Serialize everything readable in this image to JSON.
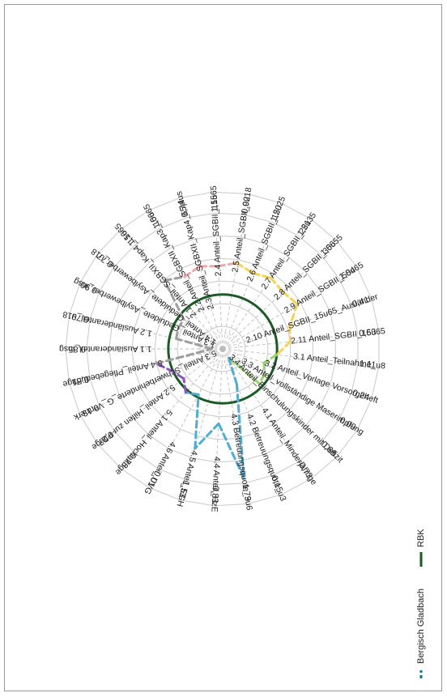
{
  "chart_data": {
    "type": "radar",
    "categories": [
      {
        "label": "1.1 Ausländeranteil_insg",
        "value": "0,85",
        "norm": 0.08,
        "color": "#9e9e9e"
      },
      {
        "label": "1.2 Ausländeranteil_u18",
        "value": "0,79",
        "norm": 0.35,
        "color": "#9e9e9e"
      },
      {
        "label": "1.3 Anteil_Geduldete_Asylbewerber_insg",
        "value": "-0,90",
        "norm": 0.36,
        "color": "#9e9e9e"
      },
      {
        "label": "1.4 Anteil_Geduldete_Asylbewerber_u18",
        "value": "-0,77",
        "norm": 0.36,
        "color": "#9e9e9e"
      },
      {
        "label": "2.1 Anteil_SGBXII_Kap4_15u65",
        "value": "1,16",
        "norm": 0.66,
        "color": "#9e9e9e"
      },
      {
        "label": "2.2 Anteil_SGBXII_Kap3_15u65",
        "value": "1,06",
        "norm": 0.6,
        "color": "#f4a6a6"
      },
      {
        "label": "2.3 Anteil_SGBXII_Kap4_65plus",
        "value": "0,74",
        "norm": 0.63,
        "color": "#f4a6a6"
      },
      {
        "label": "2.4 Anteil_SGBII_15u65",
        "value": "1,15",
        "norm": 0.61,
        "color": "#f4a6a6"
      },
      {
        "label": "2.5 Anteil_SGBII_0u18",
        "value": "0,92",
        "norm": 0.64,
        "color": "#f8d352"
      },
      {
        "label": "2.6 Anteil_SGBII_15u25",
        "value": "1,20",
        "norm": 0.6,
        "color": "#f8d352"
      },
      {
        "label": "2.7 Anteil_SGBII_25u35",
        "value": "1,21",
        "norm": 0.63,
        "color": "#f8d352"
      },
      {
        "label": "2.8 Anteil_SGBII_35u55",
        "value": "1,06",
        "norm": 0.61,
        "color": "#f8d352"
      },
      {
        "label": "2.9 Anteil_SGBII_55u65",
        "value": "1,04",
        "norm": 0.64,
        "color": "#f8d352"
      },
      {
        "label": "2.10 Anteil_SGBII_15u65_Ausländer",
        "value": "0,41",
        "norm": 0.52,
        "color": "#f8d352"
      },
      {
        "label": "2.11 Anteil_SGBII_15u65",
        "value": "0,63",
        "norm": 0.5,
        "color": "#f8d352"
      },
      {
        "label": "3.1 Anteil_Teilnahme_u8",
        "value": "1,11",
        "norm": 0.4,
        "color": "#98d36b"
      },
      {
        "label": "3.2 Anteil_Vorlage Vorsorgeheft",
        "value": "0,24",
        "norm": 0.32,
        "color": "#98d36b"
      },
      {
        "label": "3.3 Anteil_vollständige Maserimpfung",
        "value": "0,09",
        "norm": 0.36,
        "color": "#98d36b"
      },
      {
        "label": "3.4 Anteil_Einschulungskinder mit Defizit",
        "value": "0,68",
        "norm": 0.37,
        "color": "#98d36b"
      },
      {
        "label": "4.1 Anteil_Minderjährige",
        "value": "-0,73",
        "norm": 0.08,
        "color": "#4aaed8"
      },
      {
        "label": "4.2 Betreuungsquote_u3",
        "value": "0,15",
        "norm": 0.28,
        "color": "#4aaed8"
      },
      {
        "label": "4.3 Betreuungsquote_3u6",
        "value": "1,79",
        "norm": 0.96,
        "color": "#4aaed8"
      },
      {
        "label": "4.4 Anteil_HzE",
        "value": "0,83",
        "norm": 0.55,
        "color": "#4aaed8"
      },
      {
        "label": "4.5 Anteil_EGH",
        "value": "1,53",
        "norm": 0.76,
        "color": "#4aaed8"
      },
      {
        "label": "4.6 Anteil_UVG",
        "value": "-0,01",
        "norm": 0.38,
        "color": "#4aaed8"
      },
      {
        "label": "5.1 Anteil_Hochaltrige",
        "value": "0,73",
        "norm": 0.42,
        "color": "#8d52c5"
      },
      {
        "label": "5.2 Anteil_Hilfen zur Pflege",
        "value": "-0,27",
        "norm": 0.36,
        "color": "#8d52c5"
      },
      {
        "label": "5.3 Anteil_Schwerbehinderte_G_Vermerk",
        "value": "0,13",
        "norm": 0.4,
        "color": "#8d52c5"
      },
      {
        "label": "5.4 Anteil_Pflegebedürftige",
        "value": "0,51",
        "norm": 0.5,
        "color": "#9e9e9e"
      }
    ],
    "reference_ring": {
      "name": "RBK",
      "norm": 0.4,
      "color": "#1a5a23"
    },
    "legend": [
      {
        "name": "Bergisch Gladbach",
        "style": "dashed",
        "color": "#1f6d94"
      },
      {
        "name": "RBK",
        "style": "solid",
        "color": "#1a5a23"
      }
    ],
    "grid": true,
    "rings": 6,
    "legend_position": "bottom"
  }
}
